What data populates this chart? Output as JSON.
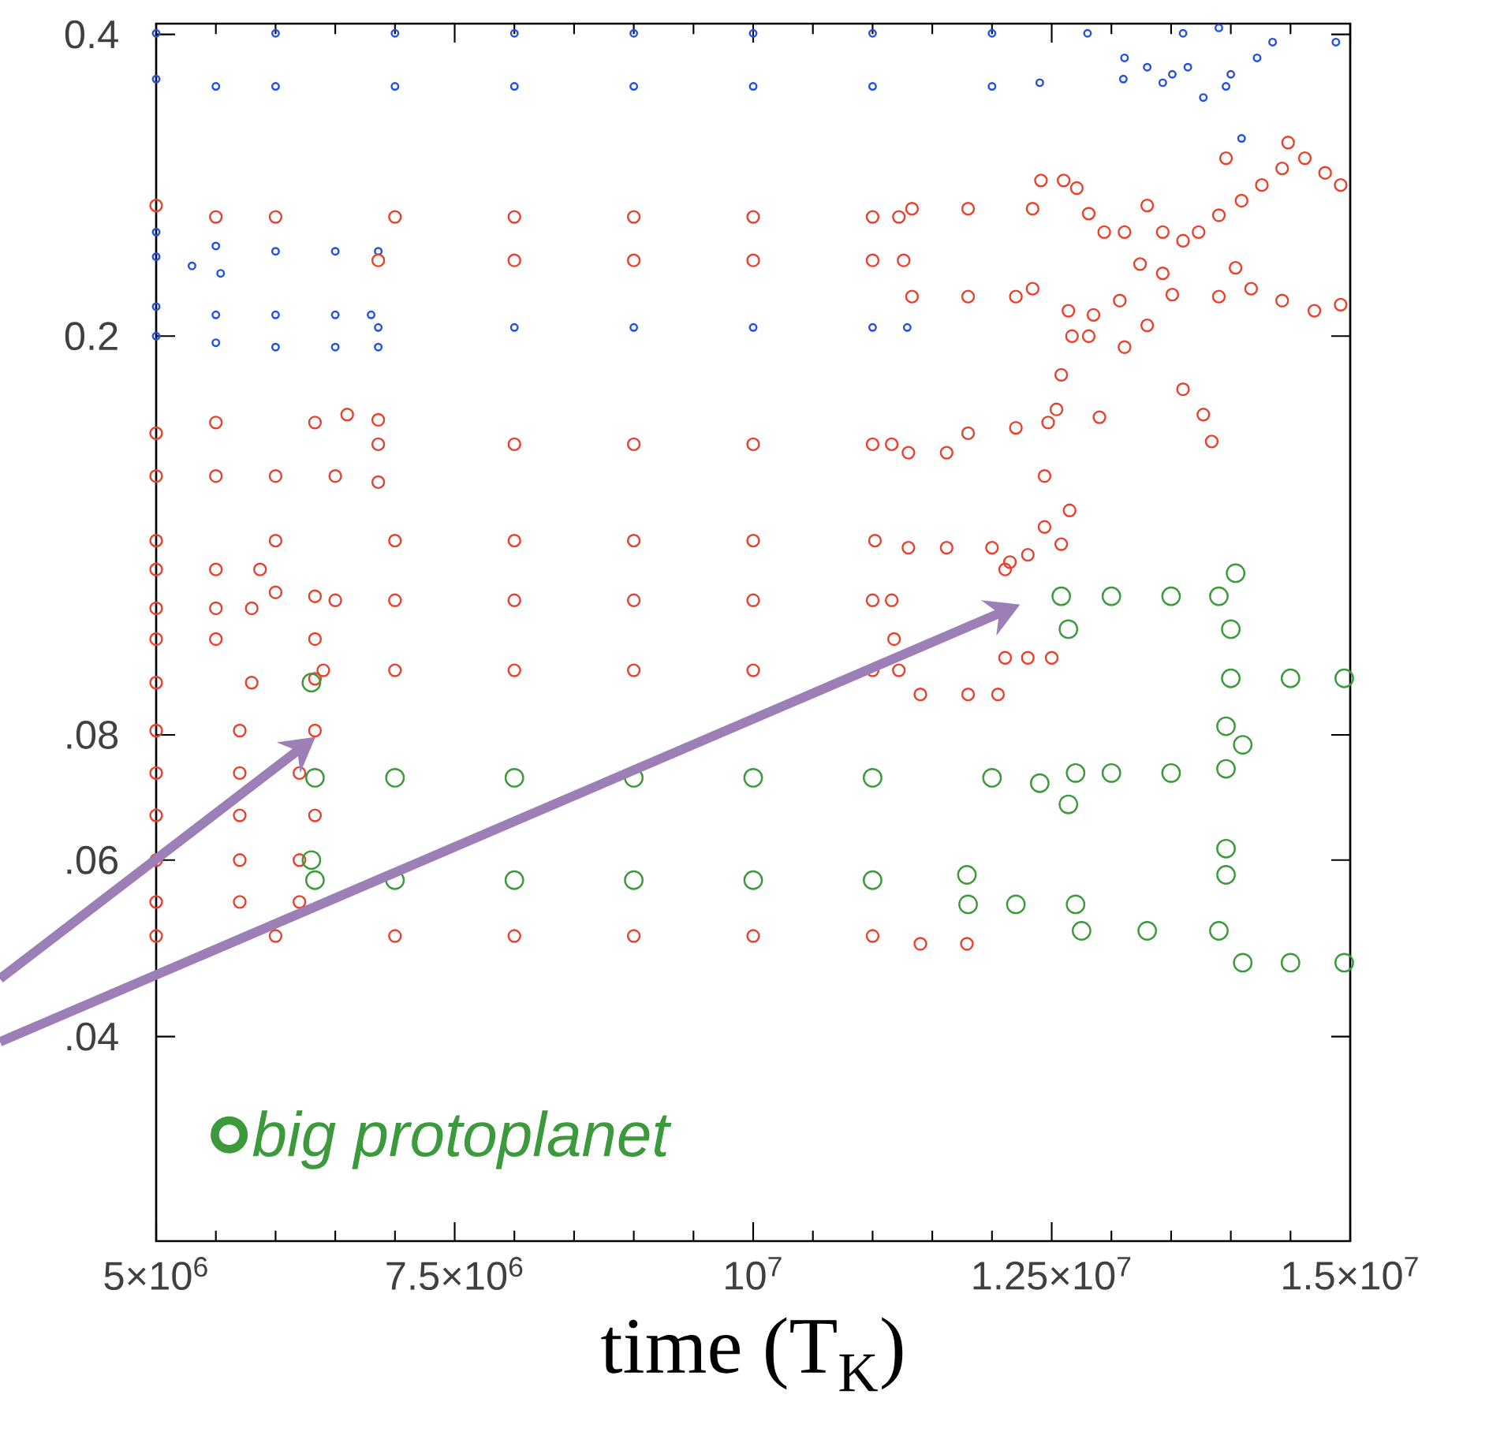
{
  "chart_data": {
    "type": "scatter",
    "xlabel": "time (T$_{K}$)",
    "log": "y",
    "marker": "circle",
    "legend": "bottom left",
    "xlim": [
      5000000.0,
      15000000.0
    ],
    "ylim": [
      0.025,
      0.41
    ],
    "xticks": [
      {
        "value": 5000000.0,
        "label": "5×10$^{6}$"
      },
      {
        "value": 7500000.0,
        "label": "7.5×10$^{6}$"
      },
      {
        "value": 10000000.0,
        "label": "10$^{7}$"
      },
      {
        "value": 12500000.0,
        "label": "1.25×10$^{7}$"
      },
      {
        "value": 15000000.0,
        "label": "1.5×10$^{7}$"
      }
    ],
    "yticks": [
      0.4,
      0.2,
      {
        "value": 0.08,
        "label": ".08"
      },
      {
        "value": 0.06,
        "label": ".06"
      },
      {
        "value": 0.04,
        "label": ".04"
      }
    ],
    "series": [
      {
        "color": "#2050e0",
        "x": [
          5000000.0,
          6000000.0,
          7000000.0,
          8000000.0,
          9000000.0,
          10000000.0,
          11000000.0,
          12000000.0,
          12800000.0,
          5000000.0,
          5500000.0,
          6000000.0,
          7000000.0,
          8000000.0,
          9000000.0,
          10000000.0,
          11000000.0,
          12000000.0,
          12400000.0,
          13100000.0,
          13110000.0,
          13300000.0,
          13510000.0,
          13640000.0,
          13430000.0,
          13770000.0,
          13960000.0,
          14000000.0,
          14220000.0,
          14350000.0,
          14880000.0,
          13600000.0,
          13900000.0,
          14090000.0,
          5000000.0,
          5500000.0,
          6000000.0,
          6500000.0,
          6860000.0,
          5000000.0,
          5300000.0,
          5540000.0,
          5000000.0,
          5500000.0,
          6000000.0,
          6500000.0,
          6800000.0,
          6860000.0,
          8000000.0,
          9000000.0,
          10000000.0,
          11000000.0,
          11290000.0,
          5000000.0,
          5500000.0,
          6000000.0,
          6500000.0,
          6860000.0
        ],
        "values": [
          0.401,
          0.401,
          0.401,
          0.401,
          0.401,
          0.401,
          0.401,
          0.401,
          0.401,
          0.361,
          0.355,
          0.355,
          0.355,
          0.355,
          0.355,
          0.355,
          0.355,
          0.355,
          0.358,
          0.361,
          0.379,
          0.371,
          0.365,
          0.371,
          0.358,
          0.346,
          0.355,
          0.365,
          0.379,
          0.393,
          0.393,
          0.401,
          0.406,
          0.315,
          0.254,
          0.246,
          0.243,
          0.243,
          0.243,
          0.24,
          0.235,
          0.231,
          0.214,
          0.21,
          0.21,
          0.21,
          0.21,
          0.204,
          0.204,
          0.204,
          0.204,
          0.204,
          0.204,
          0.2,
          0.197,
          0.195,
          0.195,
          0.195
        ]
      },
      {
        "color": "#e8402a",
        "x": [
          5000000.0,
          5500000.0,
          6000000.0,
          7000000.0,
          8000000.0,
          9000000.0,
          10000000.0,
          11000000.0,
          11220000.0,
          11330000.0,
          11800000.0,
          12340000.0,
          12410000.0,
          12600000.0,
          12710000.0,
          6860000.0,
          8000000.0,
          9000000.0,
          10000000.0,
          11000000.0,
          11260000.0,
          11330000.0,
          11800000.0,
          12200000.0,
          12340000.0,
          5000000.0,
          5500000.0,
          6330000.0,
          6600000.0,
          6860000.0,
          6860000.0,
          8000000.0,
          9000000.0,
          10000000.0,
          11000000.0,
          11160000.0,
          11300000.0,
          11620000.0,
          11800000.0,
          12200000.0,
          12470000.0,
          5000000.0,
          5500000.0,
          6000000.0,
          6500000.0,
          6860000.0,
          5000000.0,
          6000000.0,
          7000000.0,
          8000000.0,
          9000000.0,
          10000000.0,
          11020000.0,
          11300000.0,
          11620000.0,
          12000000.0,
          12150000.0,
          12300000.0,
          5000000.0,
          5500000.0,
          5870000.0,
          5000000.0,
          5500000.0,
          5800000.0,
          6000000.0,
          6330000.0,
          6500000.0,
          7000000.0,
          8000000.0,
          9000000.0,
          10000000.0,
          11000000.0,
          11160000.0,
          11180000.0,
          5000000.0,
          5500000.0,
          6330000.0,
          5000000.0,
          5800000.0,
          6330000.0,
          6400000.0,
          7000000.0,
          8000000.0,
          9000000.0,
          10000000.0,
          11000000.0,
          11220000.0,
          11400000.0,
          11800000.0,
          12050000.0,
          5000000.0,
          5700000.0,
          6330000.0,
          5000000.0,
          5700000.0,
          6200000.0,
          5000000.0,
          5700000.0,
          6330000.0,
          5000000.0,
          5700000.0,
          6200000.0,
          5000000.0,
          5700000.0,
          6200000.0,
          5000000.0,
          6000000.0,
          7000000.0,
          8000000.0,
          9000000.0,
          10000000.0,
          11000000.0,
          11400000.0,
          11790000.0,
          12110000.0,
          12300000.0,
          12500000.0,
          12810000.0,
          12940000.0,
          13110000.0,
          13300000.0,
          13430000.0,
          13600000.0,
          13730000.0,
          13900000.0,
          14090000.0,
          14260000.0,
          14430000.0,
          14620000.0,
          14790000.0,
          14920000.0,
          13960000.0,
          14480000.0,
          12640000.0,
          12850000.0,
          13070000.0,
          13240000.0,
          13430000.0,
          13510000.0,
          13300000.0,
          13110000.0,
          12810000.0,
          12670000.0,
          13900000.0,
          14170000.0,
          14430000.0,
          14700000.0,
          14920000.0,
          14040000.0,
          12580000.0,
          12900000.0,
          13600000.0,
          13770000.0,
          13840000.0,
          12540000.0,
          12440000.0,
          12650000.0,
          12440000.0,
          12580000.0,
          12110000.0
        ],
        "values": [
          0.27,
          0.263,
          0.263,
          0.263,
          0.263,
          0.263,
          0.263,
          0.263,
          0.263,
          0.268,
          0.268,
          0.268,
          0.286,
          0.286,
          0.281,
          0.238,
          0.238,
          0.238,
          0.238,
          0.238,
          0.238,
          0.219,
          0.219,
          0.219,
          0.223,
          0.16,
          0.164,
          0.164,
          0.167,
          0.165,
          0.156,
          0.156,
          0.156,
          0.156,
          0.156,
          0.156,
          0.153,
          0.153,
          0.16,
          0.162,
          0.164,
          0.145,
          0.145,
          0.145,
          0.145,
          0.143,
          0.125,
          0.125,
          0.125,
          0.125,
          0.125,
          0.125,
          0.125,
          0.123,
          0.123,
          0.123,
          0.119,
          0.121,
          0.117,
          0.117,
          0.117,
          0.107,
          0.107,
          0.107,
          0.111,
          0.11,
          0.109,
          0.109,
          0.109,
          0.109,
          0.109,
          0.109,
          0.109,
          0.0997,
          0.0997,
          0.0997,
          0.0997,
          0.0902,
          0.0902,
          0.091,
          0.0928,
          0.0928,
          0.0928,
          0.0928,
          0.0928,
          0.0928,
          0.0928,
          0.0878,
          0.0878,
          0.0878,
          0.0808,
          0.0808,
          0.0808,
          0.0733,
          0.0733,
          0.0733,
          0.0665,
          0.0665,
          0.0665,
          0.06,
          0.06,
          0.06,
          0.0545,
          0.0545,
          0.0545,
          0.0504,
          0.0504,
          0.0504,
          0.0504,
          0.0504,
          0.0504,
          0.0504,
          0.0495,
          0.0495,
          0.0955,
          0.0955,
          0.0955,
          0.265,
          0.254,
          0.254,
          0.27,
          0.254,
          0.249,
          0.254,
          0.264,
          0.273,
          0.283,
          0.294,
          0.301,
          0.291,
          0.283,
          0.301,
          0.312,
          0.212,
          0.21,
          0.217,
          0.236,
          0.231,
          0.22,
          0.205,
          0.195,
          0.2,
          0.2,
          0.219,
          0.223,
          0.217,
          0.212,
          0.215,
          0.234,
          0.183,
          0.166,
          0.177,
          0.167,
          0.157,
          0.169,
          0.145,
          0.134,
          0.129,
          0.124,
          0.117
        ]
      },
      {
        "name": "big protoplanet",
        "color": "#3c9a3c",
        "x": [
          6330000.0,
          7000000.0,
          8000000.0,
          9000000.0,
          10000000.0,
          11000000.0,
          12000000.0,
          12400000.0,
          12640000.0,
          12700000.0,
          13000000.0,
          13500000.0,
          13960000.0,
          13960000.0,
          14100000.0,
          12580000.0,
          13000000.0,
          13500000.0,
          13900000.0,
          14040000.0,
          12640000.0,
          14000000.0,
          14000000.0,
          14500000.0,
          14950000.0,
          6330000.0,
          7000000.0,
          8000000.0,
          9000000.0,
          10000000.0,
          11000000.0,
          11790000.0,
          11800000.0,
          12200000.0,
          12700000.0,
          12750000.0,
          13300000.0,
          13900000.0,
          14100000.0,
          14500000.0,
          14950000.0,
          13960000.0,
          13960000.0,
          6300000.0,
          6300000.0
        ],
        "values": [
          0.0725,
          0.0725,
          0.0725,
          0.0725,
          0.0725,
          0.0725,
          0.0725,
          0.0716,
          0.0682,
          0.0733,
          0.0733,
          0.0733,
          0.074,
          0.0816,
          0.0782,
          0.11,
          0.11,
          0.11,
          0.11,
          0.116,
          0.102,
          0.102,
          0.0911,
          0.0911,
          0.0911,
          0.0573,
          0.0573,
          0.0573,
          0.0573,
          0.0573,
          0.0573,
          0.058,
          0.0542,
          0.0542,
          0.0542,
          0.051,
          0.051,
          0.051,
          0.0474,
          0.0474,
          0.0474,
          0.0616,
          0.058,
          0.0902,
          0.06
        ]
      }
    ]
  }
}
